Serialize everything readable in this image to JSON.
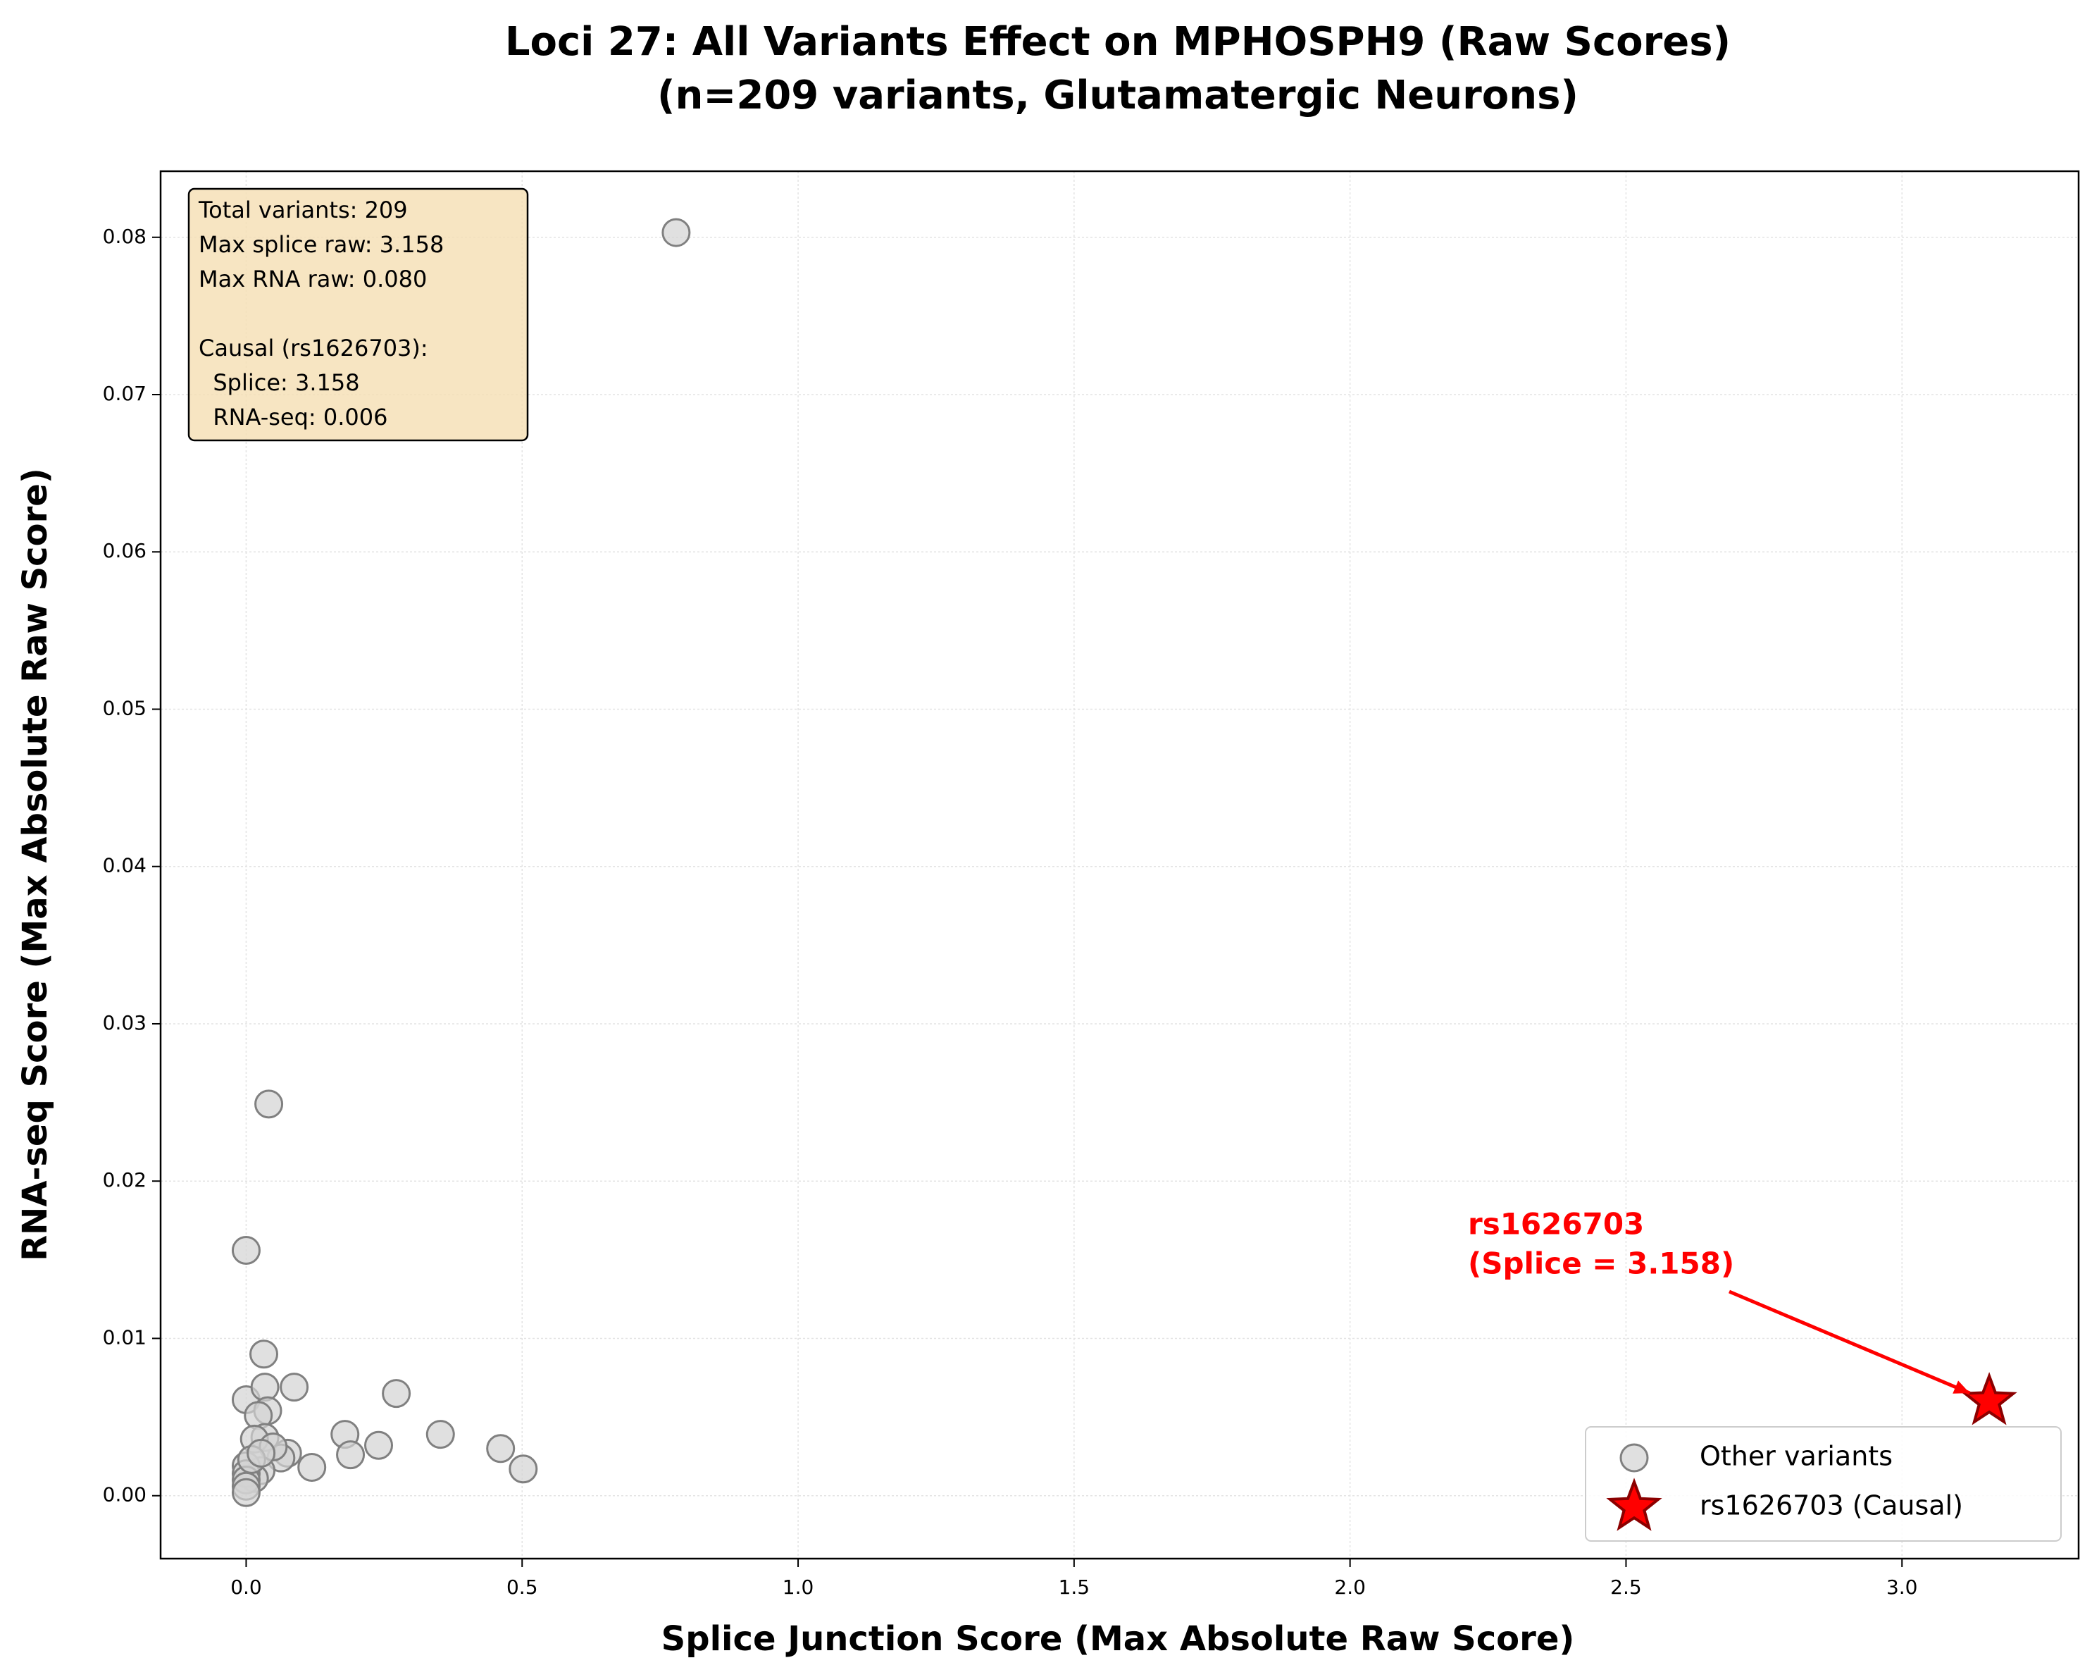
{
  "chart_data": {
    "type": "scatter",
    "title": [
      "Loci 27: All Variants Effect on MPHOSPH9 (Raw Scores)",
      "(n=209 variants, Glutamatergic Neurons)"
    ],
    "x_label": "Splice Junction Score (Max Absolute Raw Score)",
    "y_label": "RNA-seq Score (Max Absolute Raw Score)",
    "xlim": [
      -0.155,
      3.32
    ],
    "ylim": [
      -0.004,
      0.0842
    ],
    "xticks": [
      {
        "value": 0,
        "label": "0.0"
      },
      0.5,
      {
        "value": 1,
        "label": "1.0"
      },
      1.5,
      {
        "value": 2,
        "label": "2.0"
      },
      2.5,
      {
        "value": 3,
        "label": "3.0"
      }
    ],
    "yticks": [
      {
        "value": 0,
        "label": "0.00"
      },
      0.01,
      0.02,
      0.03,
      0.04,
      0.05,
      0.06,
      0.07,
      0.08
    ],
    "grid": true,
    "legend_position": "lower right",
    "series": [
      {
        "name": "Other variants",
        "color": "#d3d3d3",
        "marker": "circle",
        "x": [
          0.779,
          0.041,
          0.0,
          0.032,
          0.0,
          0.087,
          0.034,
          0.272,
          0.039,
          0.022,
          0.179,
          0.352,
          0.24,
          0.189,
          0.461,
          0.502,
          0.119,
          0.075,
          0.063,
          0.034,
          0.015,
          0.049,
          0.027,
          0.015,
          0.0,
          0.0,
          0.0,
          0.0,
          0.0,
          0.01,
          0.027
        ],
        "values": [
          0.0803,
          0.0249,
          0.0156,
          0.009,
          0.0061,
          0.0069,
          0.0069,
          0.0065,
          0.0054,
          0.0051,
          0.0039,
          0.0039,
          0.0032,
          0.0026,
          0.003,
          0.0017,
          0.0018,
          0.0027,
          0.0024,
          0.0037,
          0.0036,
          0.0031,
          0.0016,
          0.0011,
          0.0019,
          0.0014,
          0.001,
          0.0006,
          0.0002,
          0.0023,
          0.0027
        ]
      },
      {
        "name": "rs1626703 (Causal)",
        "color": "#ff0000",
        "marker": "star",
        "x": [
          3.158
        ],
        "values": [
          0.006
        ]
      }
    ],
    "stats_box": [
      [
        "Total variants: 209",
        "Max splice raw: 3.158",
        "Max RNA raw: 0.080"
      ],
      [
        "Causal (rs1626703):",
        "  Splice: 3.158",
        "  RNA-seq: 0.006"
      ]
    ],
    "annotation": [
      "rs1626703",
      "(Splice = 3.158)"
    ]
  }
}
